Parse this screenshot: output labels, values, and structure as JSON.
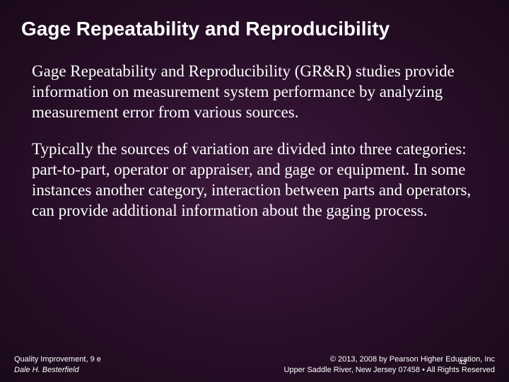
{
  "slide": {
    "title": "Gage Repeatability and Reproducibility",
    "paragraph1": "Gage Repeatability and Reproducibility (GR&R) studies provide information on measurement system performance by analyzing measurement error from various sources.",
    "paragraph2": "Typically the sources of variation are divided into three categories: part-to-part, operator or appraiser, and gage or equipment. In some instances another category, interaction between parts and operators, can provide additional information about the gaging process."
  },
  "footer": {
    "book_title": "Quality Improvement, 9 e",
    "author": "Dale H. Besterfield",
    "copyright": "© 2013, 2008 by Pearson Higher Education, Inc",
    "address": "Upper Saddle River, New Jersey 07458 • All Rights Reserved",
    "page_number": "43"
  },
  "colors": {
    "background_center": "#3d1a3d",
    "background_mid": "#2a0f2a",
    "background_edge": "#1a0a1a",
    "text": "#ffffff"
  },
  "typography": {
    "title_fontsize": 28,
    "title_weight": "bold",
    "body_fontsize": 23,
    "body_family": "Times New Roman",
    "footer_fontsize": 11
  }
}
